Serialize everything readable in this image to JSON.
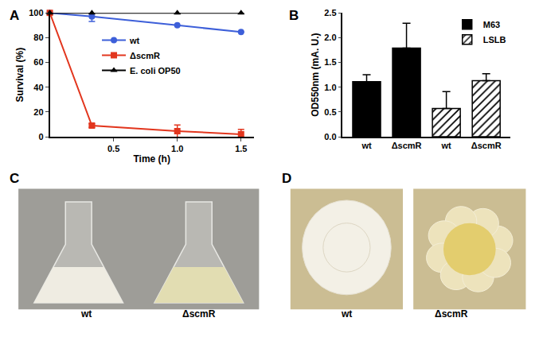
{
  "chart_data": [
    {
      "panel": "A",
      "type": "line",
      "x_label": "Time (h)",
      "y_label": "Survival (%)",
      "x": [
        0,
        0.33,
        1,
        1.5
      ],
      "xlim": [
        0,
        1.6
      ],
      "xticks": [
        0.5,
        {
          "value": 1,
          "label": "1.0"
        },
        1.5
      ],
      "ylim": [
        0,
        100
      ],
      "yticks": [
        0,
        20,
        40,
        60,
        80,
        100
      ],
      "grid": false,
      "legend": "center",
      "series": [
        {
          "name": "wt",
          "color": "#3d5fd9",
          "marker": "circle",
          "values": [
            100,
            97,
            90,
            84.5
          ],
          "error": [
            0,
            4,
            0,
            0
          ]
        },
        {
          "name": "ΔscmR",
          "color": "#e2361e",
          "marker": "square",
          "values": [
            100,
            9,
            4.5,
            2
          ],
          "error": [
            0,
            1.5,
            5,
            4
          ]
        },
        {
          "name": "E. coli OP50",
          "color": "#000000",
          "marker": "triangle-up",
          "values": [
            100,
            100,
            100,
            100
          ],
          "error": [
            0,
            0,
            0,
            0
          ]
        }
      ]
    },
    {
      "panel": "B",
      "type": "bar",
      "y_label": "OD550nm (mA. U.)",
      "categories": [
        "wt",
        "ΔscmR",
        "wt",
        "ΔscmR"
      ],
      "ylim": [
        0,
        2.5
      ],
      "yticks": [
        {
          "value": 0,
          "label": "0.0"
        },
        {
          "value": 0.5,
          "label": "0.5"
        },
        {
          "value": 1,
          "label": "1.0"
        },
        {
          "value": 1.5,
          "label": "1.5"
        },
        {
          "value": 2,
          "label": "2.0"
        },
        {
          "value": 2.5,
          "label": "2.5"
        }
      ],
      "grid": false,
      "legend": "upper right",
      "series": [
        {
          "name": "M63",
          "color": "#000000",
          "marker": "solid",
          "values": [
            1.11,
            1.79,
            null,
            null
          ],
          "error": [
            0.14,
            0.5,
            null,
            null
          ]
        },
        {
          "name": "LSLB",
          "color": "#000000",
          "marker": "hatched",
          "values": [
            null,
            null,
            0.57,
            1.13
          ],
          "error": [
            null,
            null,
            0.34,
            0.14
          ]
        }
      ]
    }
  ],
  "photos": [
    {
      "panel": "C",
      "labels": [
        "wt",
        "ΔscmR"
      ]
    },
    {
      "panel": "D",
      "labels": [
        "wt",
        "ΔscmR"
      ]
    }
  ]
}
